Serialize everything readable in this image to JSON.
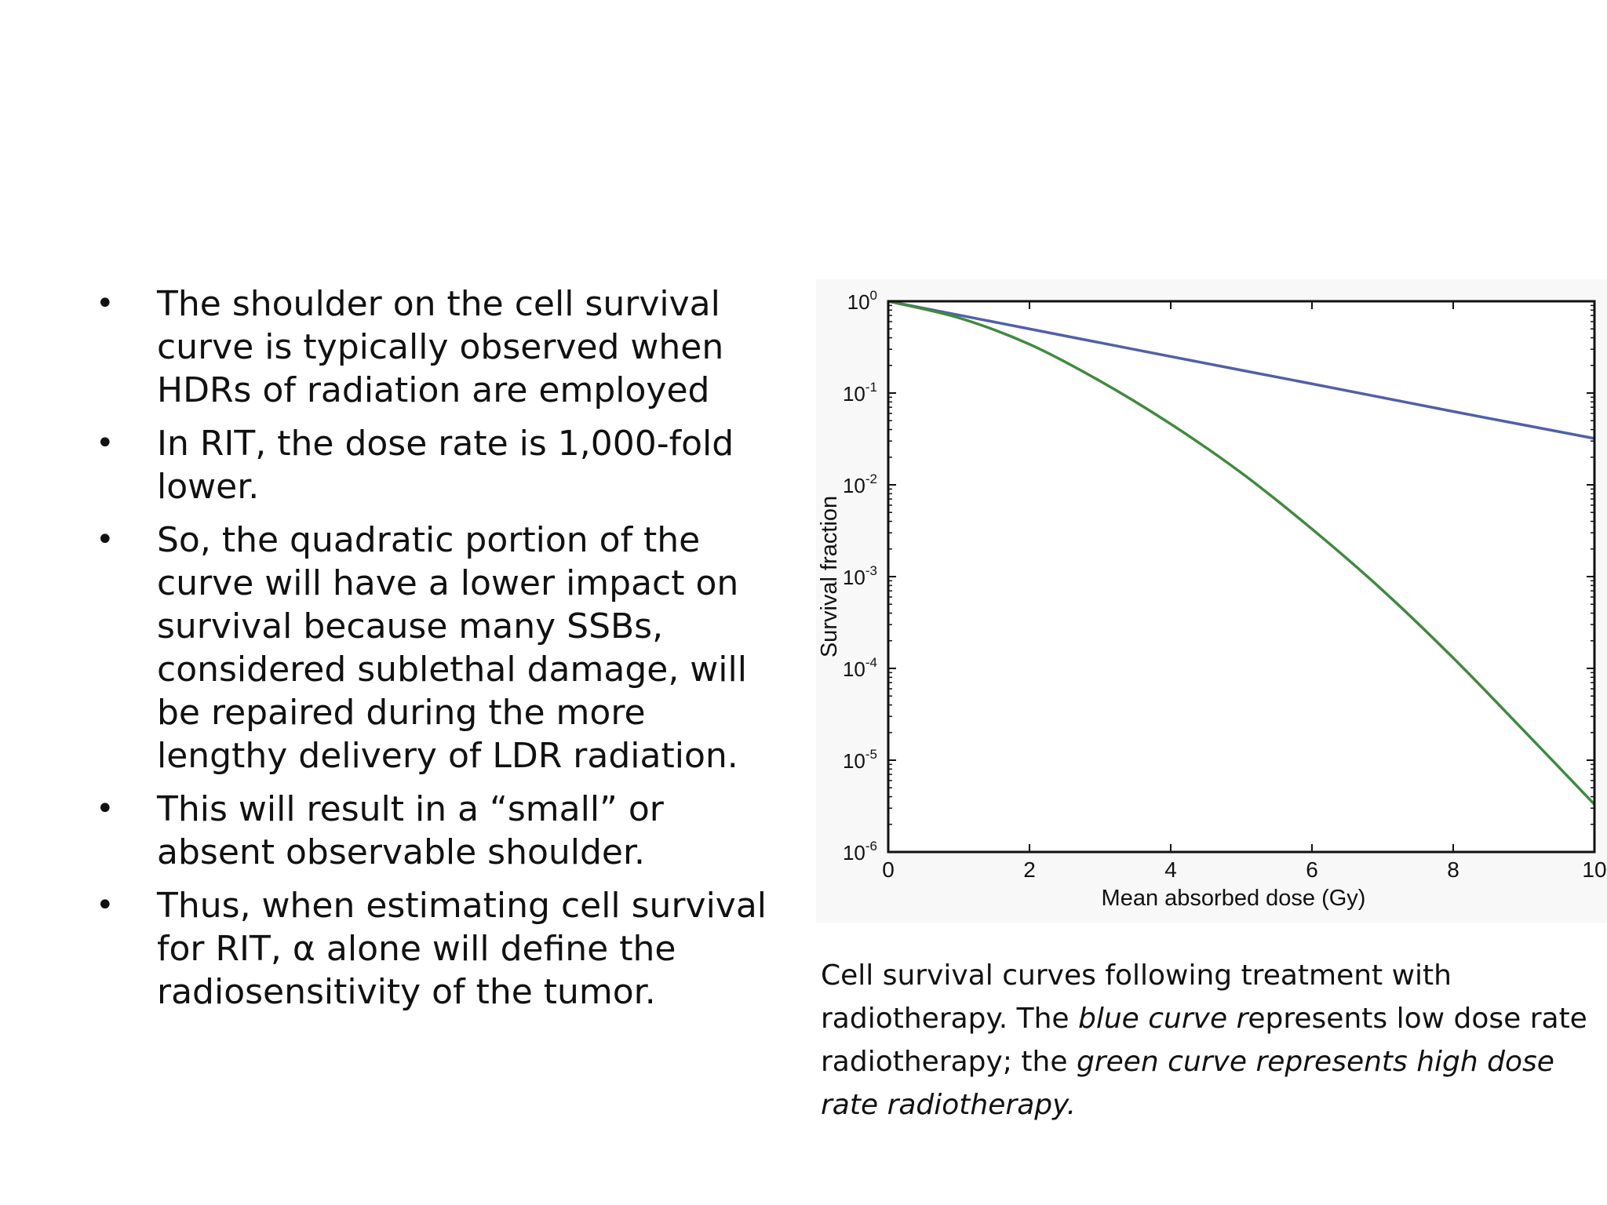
{
  "bullets": [
    "The shoulder on the cell survival curve is typically observed when HDRs of radiation are employed",
    "In RIT, the dose rate is 1,000-fold lower.",
    "So, the quadratic portion of the curve will have a lower impact on survival because many SSBs, considered sublethal damage, will be repaired during the more lengthy delivery of LDR radiation.",
    "This will result in a “small” or absent observable shoulder.",
    "Thus, when estimating cell survival for RIT, α alone will define the radiosensitivity of the tumor."
  ],
  "bullet_symbol": "•",
  "caption": {
    "part1": "Cell survival curves following treatment with radiotherapy. The ",
    "part2": "blue curve r",
    "part3": "epresents low dose rate radiotherapy; the ",
    "part4": "green curve represents high dose rate radiotherapy."
  },
  "colors": {
    "blue_curve": "#5060a8",
    "green_curve": "#3f8a3f"
  },
  "chart_data": {
    "type": "line",
    "xlabel": "Mean absorbed dose (Gy)",
    "ylabel": "Survival fraction",
    "xlim": [
      0,
      10
    ],
    "ylim": [
      1e-06,
      1
    ],
    "y_scale": "log",
    "x_ticks": [
      "0",
      "2",
      "4",
      "6",
      "8",
      "10"
    ],
    "y_ticks": [
      {
        "base": "10",
        "exp": "0"
      },
      {
        "base": "10",
        "exp": "-1"
      },
      {
        "base": "10",
        "exp": "-2"
      },
      {
        "base": "10",
        "exp": "-3"
      },
      {
        "base": "10",
        "exp": "-4"
      },
      {
        "base": "10",
        "exp": "-5"
      },
      {
        "base": "10",
        "exp": "-6"
      }
    ],
    "series": [
      {
        "color": "blue",
        "x": [
          0,
          2,
          4,
          6,
          8,
          10
        ],
        "y": [
          1.0,
          0.5,
          0.25,
          0.126,
          0.063,
          0.032
        ]
      },
      {
        "color": "green",
        "x": [
          0,
          1,
          2,
          3,
          4,
          5,
          6,
          7,
          8,
          9,
          10
        ],
        "y": [
          1.0,
          0.66,
          0.34,
          0.135,
          0.046,
          0.0135,
          0.0033,
          0.00071,
          0.00013,
          2.1e-05,
          3.3e-06
        ]
      }
    ]
  }
}
